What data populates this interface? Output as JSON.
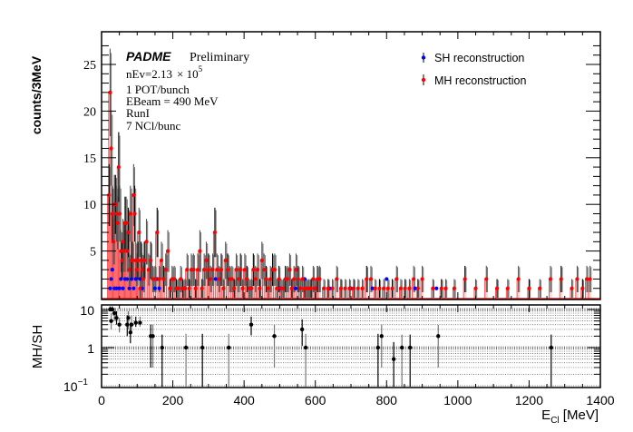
{
  "chart_data": [
    {
      "type": "scatter",
      "panel": "main",
      "title": "",
      "xlabel": "E_Cl [MeV]",
      "ylabel": "counts/3MeV",
      "xlim": [
        0,
        1400
      ],
      "ylim": [
        0,
        28
      ],
      "x_ticks": [
        0,
        200,
        400,
        600,
        800,
        1000,
        1200,
        1400
      ],
      "y_ticks": [
        5,
        10,
        15,
        20,
        25
      ],
      "y_tick_labels": [
        "5",
        "10",
        "15",
        "20",
        "25"
      ],
      "grid": false,
      "legend_position": "top-right",
      "annotations": {
        "experiment": "PADME",
        "status": "Preliminary",
        "nev_prefix": "nEv=2.13",
        "nev_times": "× 10",
        "nev_exp": "5",
        "line1": "1 POT/bunch",
        "line2": "EBeam = 490 MeV",
        "line3": "RunI",
        "line4": "7 NCl/bunc"
      },
      "series": [
        {
          "name": "SH reconstruction",
          "color": "#0000ff",
          "x": [
            24,
            27,
            30,
            36,
            42,
            50,
            54,
            60,
            66,
            72,
            78,
            84,
            90,
            96,
            108,
            114,
            150,
            156,
            162,
            234,
            320,
            420,
            500,
            545,
            570,
            600,
            640,
            700,
            760,
            800,
            880,
            940
          ],
          "y": [
            1,
            2,
            3,
            1,
            1,
            1,
            2,
            1,
            2,
            2,
            1,
            2,
            1,
            2,
            2,
            1,
            1,
            2,
            1,
            1,
            2,
            1,
            1,
            1,
            2,
            1,
            1,
            1,
            1,
            2,
            1,
            1
          ]
        },
        {
          "name": "MH reconstruction",
          "color": "#ff0000",
          "x": [
            21,
            24,
            27,
            30,
            33,
            36,
            39,
            42,
            45,
            48,
            51,
            54,
            57,
            60,
            63,
            66,
            69,
            72,
            75,
            78,
            81,
            84,
            87,
            90,
            93,
            96,
            99,
            102,
            105,
            108,
            111,
            114,
            117,
            120,
            126,
            132,
            138,
            144,
            150,
            156,
            162,
            168,
            174,
            180,
            186,
            192,
            198,
            204,
            210,
            216,
            222,
            228,
            234,
            240,
            246,
            252,
            258,
            264,
            270,
            276,
            282,
            288,
            294,
            300,
            306,
            312,
            318,
            324,
            330,
            336,
            342,
            348,
            354,
            360,
            366,
            372,
            378,
            384,
            390,
            396,
            402,
            408,
            414,
            420,
            426,
            432,
            438,
            444,
            450,
            456,
            462,
            468,
            474,
            480,
            486,
            492,
            498,
            504,
            510,
            516,
            522,
            528,
            534,
            540,
            546,
            552,
            558,
            564,
            570,
            576,
            582,
            588,
            594,
            600,
            606,
            612,
            624,
            636,
            648,
            660,
            672,
            684,
            696,
            708,
            720,
            732,
            744,
            756,
            768,
            780,
            792,
            804,
            816,
            828,
            840,
            852,
            864,
            876,
            888,
            900,
            930,
            954,
            966,
            990,
            1020,
            1050,
            1080,
            1110,
            1140,
            1170,
            1200,
            1230,
            1260,
            1290,
            1320,
            1335,
            1350,
            1362,
            1371
          ],
          "y": [
            11,
            22,
            16,
            9,
            6,
            10,
            10,
            9,
            8,
            14,
            9,
            5,
            4,
            6,
            5,
            8,
            8,
            5,
            7,
            3,
            9,
            4,
            4,
            11,
            9,
            4,
            3,
            4,
            7,
            1,
            4,
            3,
            2,
            4,
            6,
            3,
            4,
            2,
            2,
            7,
            2,
            4,
            2,
            3,
            5,
            1,
            2,
            2,
            1,
            1,
            2,
            1,
            1,
            3,
            1,
            3,
            3,
            1,
            3,
            5,
            1,
            3,
            4,
            3,
            2,
            3,
            7,
            3,
            2,
            3,
            1,
            4,
            3,
            2,
            2,
            1,
            3,
            2,
            3,
            1,
            3,
            2,
            1,
            1,
            3,
            2,
            3,
            1,
            4,
            3,
            2,
            1,
            2,
            3,
            3,
            1,
            2,
            1,
            1,
            2,
            2,
            3,
            1,
            2,
            3,
            2,
            1,
            2,
            1,
            1,
            1,
            1,
            2,
            1,
            2,
            2,
            1,
            1,
            1,
            2,
            1,
            1,
            1,
            1,
            1,
            1,
            2,
            2,
            1,
            1,
            1,
            1,
            1,
            2,
            1,
            1,
            1,
            2,
            1,
            2,
            1,
            1,
            1,
            1,
            2,
            1,
            2,
            1,
            1,
            2,
            1,
            1,
            2,
            2,
            1,
            2,
            1,
            2,
            2
          ]
        }
      ]
    },
    {
      "type": "scatter",
      "panel": "ratio",
      "xlabel": "E_Cl [MeV]",
      "ylabel": "MH/SH",
      "xlim": [
        0,
        1400
      ],
      "ylim": [
        0.1,
        12
      ],
      "yscale": "log",
      "x_ticks": [
        0,
        200,
        400,
        600,
        800,
        1000,
        1200,
        1400
      ],
      "x_tick_labels": [
        "0",
        "200",
        "400",
        "600",
        "800",
        "1000",
        "1200",
        "1400"
      ],
      "y_tick_labels": [
        "10",
        "1",
        "10^-1"
      ],
      "grid": true,
      "series": [
        {
          "name": "MH/SH",
          "color": "#000000",
          "x": [
            24,
            27,
            30,
            36,
            42,
            50,
            72,
            75,
            81,
            84,
            96,
            108,
            138,
            144,
            170,
            237,
            283,
            357,
            420,
            485,
            563,
            573,
            776,
            786,
            820,
            843,
            866,
            945,
            1262
          ],
          "y": [
            10,
            5,
            10,
            8,
            6,
            4,
            4,
            6,
            2.5,
            4,
            4.5,
            4.5,
            2,
            2,
            1,
            1,
            1,
            1,
            4,
            2,
            3,
            1,
            1,
            2,
            0.5,
            1,
            1,
            2,
            1
          ],
          "err_low": [
            0,
            2,
            0,
            3,
            2,
            1.5,
            2,
            3,
            1.2,
            1.5,
            1,
            1,
            1.7,
            1.7,
            0.9,
            0.9,
            0.9,
            0.9,
            1.9,
            1.7,
            1.9,
            0.9,
            0.9,
            1.7,
            0.45,
            0.9,
            0.9,
            1.7,
            0.9
          ],
          "err_high": [
            2,
            3,
            2,
            3,
            3,
            2,
            3,
            3,
            2,
            3,
            2,
            2,
            2,
            2,
            1.2,
            1.3,
            1.3,
            1.3,
            2.5,
            2,
            2.5,
            1.3,
            1.3,
            2,
            0.9,
            1.2,
            1.2,
            2,
            1.2
          ]
        }
      ]
    }
  ],
  "legend": [
    {
      "label": "SH reconstruction",
      "color": "#0000ff"
    },
    {
      "label": "MH reconstruction",
      "color": "#ff0000"
    }
  ],
  "xlabel_main": "E",
  "xlabel_sub": "Cl",
  "xlabel_unit": " [MeV]"
}
